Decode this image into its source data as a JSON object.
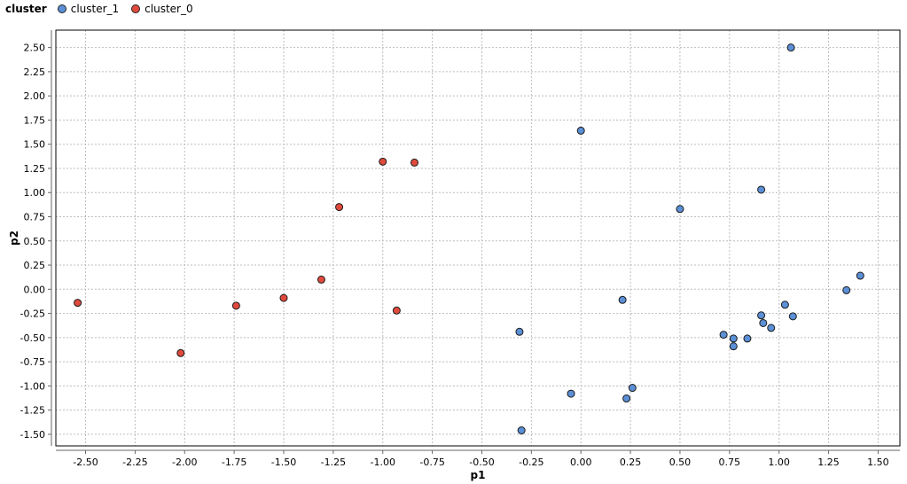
{
  "chart_data": {
    "type": "scatter",
    "title": "",
    "xlabel": "p1",
    "ylabel": "p2",
    "xlim": [
      -2.65,
      1.61
    ],
    "ylim": [
      -1.62,
      2.68
    ],
    "x_ticks": [
      -2.5,
      -2.25,
      -2.0,
      -1.75,
      -1.5,
      -1.25,
      -1.0,
      -0.75,
      -0.5,
      -0.25,
      0.0,
      0.25,
      0.5,
      0.75,
      1.0,
      1.25,
      1.5
    ],
    "y_ticks": [
      -1.5,
      -1.25,
      -1.0,
      -0.75,
      -0.5,
      -0.25,
      0.0,
      0.25,
      0.5,
      0.75,
      1.0,
      1.25,
      1.5,
      1.75,
      2.0,
      2.25,
      2.5
    ],
    "grid": true,
    "legend": {
      "title": "cluster",
      "placement": "top-left"
    },
    "series": [
      {
        "name": "cluster_1",
        "color": "#5b8fd6",
        "points": [
          [
            1.06,
            2.5
          ],
          [
            0.0,
            1.64
          ],
          [
            0.91,
            1.03
          ],
          [
            0.5,
            0.83
          ],
          [
            1.41,
            0.14
          ],
          [
            1.34,
            -0.01
          ],
          [
            0.21,
            -0.11
          ],
          [
            1.03,
            -0.16
          ],
          [
            0.91,
            -0.27
          ],
          [
            1.07,
            -0.28
          ],
          [
            0.92,
            -0.35
          ],
          [
            0.96,
            -0.4
          ],
          [
            0.72,
            -0.47
          ],
          [
            0.77,
            -0.51
          ],
          [
            0.84,
            -0.51
          ],
          [
            0.77,
            -0.59
          ],
          [
            -0.31,
            -0.44
          ],
          [
            0.26,
            -1.02
          ],
          [
            -0.05,
            -1.08
          ],
          [
            0.23,
            -1.13
          ],
          [
            -0.3,
            -1.46
          ]
        ]
      },
      {
        "name": "cluster_0",
        "color": "#e04a3c",
        "points": [
          [
            -1.0,
            1.32
          ],
          [
            -0.84,
            1.31
          ],
          [
            -1.22,
            0.85
          ],
          [
            -1.31,
            0.1
          ],
          [
            -1.5,
            -0.09
          ],
          [
            -1.74,
            -0.17
          ],
          [
            -2.54,
            -0.14
          ],
          [
            -0.93,
            -0.22
          ],
          [
            -2.02,
            -0.66
          ]
        ]
      }
    ]
  }
}
